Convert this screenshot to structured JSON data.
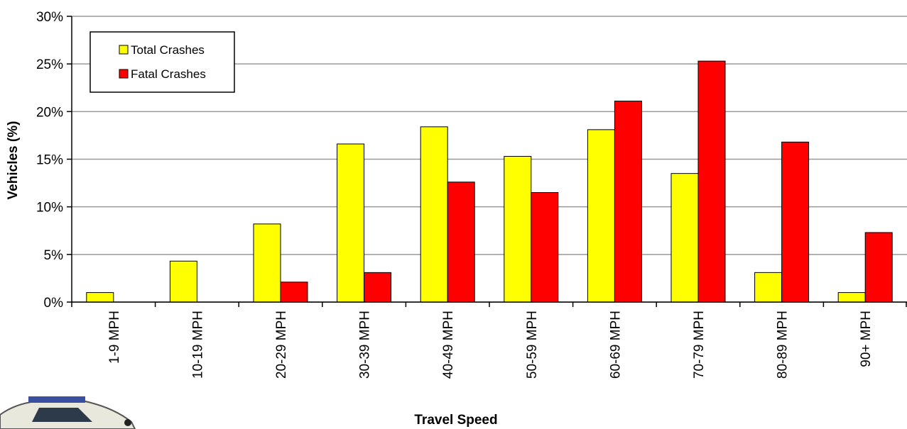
{
  "chart_data": {
    "type": "bar",
    "x_label": "Travel Speed",
    "y_label": "Vehicles (%)",
    "categories": [
      "1-9 MPH",
      "10-19 MPH",
      "20-29 MPH",
      "30-39 MPH",
      "40-49 MPH",
      "50-59 MPH",
      "60-69 MPH",
      "70-79 MPH",
      "80-89 MPH",
      "90+ MPH"
    ],
    "series": [
      {
        "name": "Total Crashes",
        "color": "#ffff00",
        "values": [
          1.0,
          4.3,
          8.2,
          16.6,
          18.4,
          15.3,
          18.1,
          13.5,
          3.1,
          1.0
        ]
      },
      {
        "name": "Fatal Crashes",
        "color": "#ff0000",
        "values": [
          0,
          0,
          2.1,
          3.1,
          12.6,
          11.5,
          21.1,
          25.3,
          16.8,
          7.3
        ]
      }
    ],
    "ylim": [
      0,
      30
    ],
    "yticks": [
      {
        "value": 0,
        "label": "0%"
      },
      {
        "value": 5,
        "label": "5%"
      },
      {
        "value": 10,
        "label": "10%"
      },
      {
        "value": 15,
        "label": "15%"
      },
      {
        "value": 20,
        "label": "20%"
      },
      {
        "value": 25,
        "label": "25%"
      },
      {
        "value": 30,
        "label": "30%"
      }
    ],
    "grid": true,
    "legend": "top-left"
  }
}
